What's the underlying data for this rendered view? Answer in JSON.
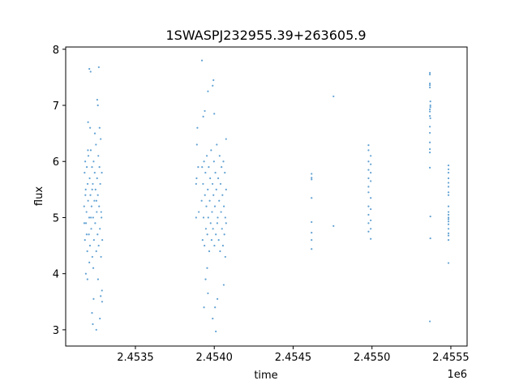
{
  "chart_data": {
    "type": "scatter",
    "title": "1SWASPJ232955.39+263605.9",
    "xlabel": "time",
    "ylabel": "flux",
    "x_offset_label": "1e6",
    "xlim": [
      2453058,
      2455603
    ],
    "ylim": [
      2.71,
      8.04
    ],
    "x_ticks": [
      2453500,
      2454000,
      2454500,
      2455000,
      2455500
    ],
    "x_tick_labels": [
      "2.4535",
      "2.4540",
      "2.4545",
      "2.4550",
      "2.4555"
    ],
    "y_ticks": [
      3,
      4,
      5,
      6,
      7,
      8
    ],
    "y_tick_labels": [
      "3",
      "4",
      "5",
      "6",
      "7",
      "8"
    ],
    "grid": false,
    "color": "#3b8bc8",
    "points": [
      [
        2453175,
        5.2
      ],
      [
        2453178,
        5.8
      ],
      [
        2453180,
        4.6
      ],
      [
        2453182,
        6.0
      ],
      [
        2453185,
        5.5
      ],
      [
        2453187,
        4.9
      ],
      [
        2453190,
        5.1
      ],
      [
        2453192,
        5.9
      ],
      [
        2453195,
        4.4
      ],
      [
        2453197,
        5.6
      ],
      [
        2453200,
        5.3
      ],
      [
        2453202,
        6.1
      ],
      [
        2453205,
        4.7
      ],
      [
        2453207,
        5.0
      ],
      [
        2453210,
        5.7
      ],
      [
        2453212,
        4.5
      ],
      [
        2453215,
        5.4
      ],
      [
        2453217,
        6.2
      ],
      [
        2453220,
        4.8
      ],
      [
        2453222,
        5.2
      ],
      [
        2453225,
        5.9
      ],
      [
        2453227,
        4.3
      ],
      [
        2453230,
        5.6
      ],
      [
        2453232,
        5.0
      ],
      [
        2453235,
        6.0
      ],
      [
        2453237,
        4.6
      ],
      [
        2453240,
        5.3
      ],
      [
        2453242,
        5.8
      ],
      [
        2453245,
        4.9
      ],
      [
        2453247,
        5.5
      ],
      [
        2453250,
        6.3
      ],
      [
        2453252,
        4.4
      ],
      [
        2453255,
        5.1
      ],
      [
        2453257,
        5.7
      ],
      [
        2453260,
        4.7
      ],
      [
        2453262,
        5.4
      ],
      [
        2453265,
        6.1
      ],
      [
        2453267,
        4.5
      ],
      [
        2453270,
        5.2
      ],
      [
        2453272,
        5.9
      ],
      [
        2453275,
        4.8
      ],
      [
        2453277,
        5.6
      ],
      [
        2453280,
        6.4
      ],
      [
        2453282,
        4.3
      ],
      [
        2453285,
        5.0
      ],
      [
        2453287,
        5.8
      ],
      [
        2453290,
        4.6
      ],
      [
        2453176,
        4.9
      ],
      [
        2453183,
        5.4
      ],
      [
        2453191,
        4.7
      ],
      [
        2453199,
        6.2
      ],
      [
        2453208,
        4.2
      ],
      [
        2453218,
        5.0
      ],
      [
        2453226,
        5.5
      ],
      [
        2453233,
        4.1
      ],
      [
        2453243,
        6.5
      ],
      [
        2453253,
        5.3
      ],
      [
        2453263,
        3.9
      ],
      [
        2453273,
        6.6
      ],
      [
        2453283,
        5.1
      ],
      [
        2453288,
        3.7
      ],
      [
        2453208,
        7.65
      ],
      [
        2453216,
        7.6
      ],
      [
        2453268,
        7.68
      ],
      [
        2453258,
        7.1
      ],
      [
        2453262,
        7.0
      ],
      [
        2453213,
        6.6
      ],
      [
        2453200,
        6.7
      ],
      [
        2453225,
        3.3
      ],
      [
        2453230,
        3.1
      ],
      [
        2453252,
        3.0
      ],
      [
        2453275,
        3.2
      ],
      [
        2453235,
        3.55
      ],
      [
        2453289,
        3.5
      ],
      [
        2453196,
        3.9
      ],
      [
        2453186,
        4.0
      ],
      [
        2453280,
        3.6
      ],
      [
        2453920,
        5.3
      ],
      [
        2453923,
        5.9
      ],
      [
        2453926,
        4.6
      ],
      [
        2453929,
        5.6
      ],
      [
        2453932,
        5.0
      ],
      [
        2453935,
        6.0
      ],
      [
        2453938,
        4.5
      ],
      [
        2453941,
        5.4
      ],
      [
        2453944,
        5.8
      ],
      [
        2453947,
        4.8
      ],
      [
        2453950,
        5.2
      ],
      [
        2453953,
        6.1
      ],
      [
        2453956,
        4.7
      ],
      [
        2453959,
        5.5
      ],
      [
        2453962,
        5.0
      ],
      [
        2453965,
        5.9
      ],
      [
        2453968,
        4.4
      ],
      [
        2453971,
        5.3
      ],
      [
        2453974,
        5.7
      ],
      [
        2453977,
        4.9
      ],
      [
        2453980,
        6.2
      ],
      [
        2453983,
        4.6
      ],
      [
        2453986,
        5.1
      ],
      [
        2453989,
        5.6
      ],
      [
        2453992,
        4.8
      ],
      [
        2453995,
        5.4
      ],
      [
        2453998,
        6.0
      ],
      [
        2454001,
        4.5
      ],
      [
        2454004,
        5.2
      ],
      [
        2454007,
        5.8
      ],
      [
        2454010,
        4.7
      ],
      [
        2454013,
        5.5
      ],
      [
        2454016,
        6.3
      ],
      [
        2454019,
        4.9
      ],
      [
        2454022,
        5.0
      ],
      [
        2454025,
        5.7
      ],
      [
        2454028,
        4.6
      ],
      [
        2454031,
        5.3
      ],
      [
        2454034,
        6.1
      ],
      [
        2454037,
        4.4
      ],
      [
        2454040,
        5.6
      ],
      [
        2454043,
        5.1
      ],
      [
        2454046,
        5.9
      ],
      [
        2454049,
        4.8
      ],
      [
        2454052,
        5.4
      ],
      [
        2454055,
        4.5
      ],
      [
        2454058,
        6.0
      ],
      [
        2454061,
        5.2
      ],
      [
        2454064,
        4.7
      ],
      [
        2454067,
        5.8
      ],
      [
        2454070,
        5.0
      ],
      [
        2454075,
        6.4
      ],
      [
        2454075,
        5.5
      ],
      [
        2454075,
        4.9
      ],
      [
        2453885,
        5.6
      ],
      [
        2453890,
        6.3
      ],
      [
        2453893,
        6.6
      ],
      [
        2453898,
        5.9
      ],
      [
        2453902,
        5.1
      ],
      [
        2453888,
        5.7
      ],
      [
        2453885,
        5.0
      ],
      [
        2453922,
        7.8
      ],
      [
        2453960,
        7.25
      ],
      [
        2453990,
        7.35
      ],
      [
        2453995,
        7.45
      ],
      [
        2453930,
        6.8
      ],
      [
        2453940,
        6.9
      ],
      [
        2454000,
        6.85
      ],
      [
        2453945,
        3.9
      ],
      [
        2453935,
        3.4
      ],
      [
        2453990,
        3.2
      ],
      [
        2454010,
        2.97
      ],
      [
        2454020,
        3.55
      ],
      [
        2454005,
        3.4
      ],
      [
        2453960,
        3.65
      ],
      [
        2454060,
        3.8
      ],
      [
        2454070,
        4.3
      ],
      [
        2453955,
        4.1
      ],
      [
        2454617,
        5.78
      ],
      [
        2454617,
        5.71
      ],
      [
        2454617,
        5.68
      ],
      [
        2454617,
        5.35
      ],
      [
        2454617,
        4.92
      ],
      [
        2454617,
        4.73
      ],
      [
        2454617,
        4.6
      ],
      [
        2454617,
        4.44
      ],
      [
        2454756,
        7.16
      ],
      [
        2454756,
        4.85
      ],
      [
        2454978,
        6.29
      ],
      [
        2454978,
        6.2
      ],
      [
        2454992,
        6.1
      ],
      [
        2454978,
        6.0
      ],
      [
        2454992,
        5.95
      ],
      [
        2454978,
        5.85
      ],
      [
        2454992,
        5.8
      ],
      [
        2454978,
        5.7
      ],
      [
        2454992,
        5.65
      ],
      [
        2454978,
        5.55
      ],
      [
        2454978,
        5.45
      ],
      [
        2454992,
        5.35
      ],
      [
        2454978,
        5.2
      ],
      [
        2454992,
        5.15
      ],
      [
        2454978,
        5.05
      ],
      [
        2454992,
        4.95
      ],
      [
        2454978,
        4.9
      ],
      [
        2454992,
        4.8
      ],
      [
        2454978,
        4.75
      ],
      [
        2454992,
        4.62
      ],
      [
        2455367,
        7.58
      ],
      [
        2455367,
        7.55
      ],
      [
        2455367,
        7.39
      ],
      [
        2455367,
        7.36
      ],
      [
        2455367,
        7.32
      ],
      [
        2455370,
        7.07
      ],
      [
        2455370,
        7.0
      ],
      [
        2455370,
        6.97
      ],
      [
        2455367,
        6.93
      ],
      [
        2455367,
        6.89
      ],
      [
        2455367,
        6.81
      ],
      [
        2455370,
        6.77
      ],
      [
        2455367,
        6.62
      ],
      [
        2455367,
        6.51
      ],
      [
        2455367,
        6.34
      ],
      [
        2455367,
        6.22
      ],
      [
        2455367,
        6.16
      ],
      [
        2455367,
        5.89
      ],
      [
        2455370,
        5.02
      ],
      [
        2455370,
        4.63
      ],
      [
        2455367,
        3.15
      ],
      [
        2455485,
        5.93
      ],
      [
        2455485,
        5.86
      ],
      [
        2455485,
        5.8
      ],
      [
        2455485,
        5.7
      ],
      [
        2455485,
        5.62
      ],
      [
        2455485,
        5.55
      ],
      [
        2455485,
        5.45
      ],
      [
        2455485,
        5.4
      ],
      [
        2455485,
        5.2
      ],
      [
        2455485,
        5.1
      ],
      [
        2455485,
        5.05
      ],
      [
        2455485,
        5.0
      ],
      [
        2455485,
        4.97
      ],
      [
        2455485,
        4.93
      ],
      [
        2455485,
        4.88
      ],
      [
        2455485,
        4.8
      ],
      [
        2455485,
        4.72
      ],
      [
        2455485,
        4.68
      ],
      [
        2455485,
        4.6
      ],
      [
        2455485,
        4.19
      ]
    ]
  }
}
